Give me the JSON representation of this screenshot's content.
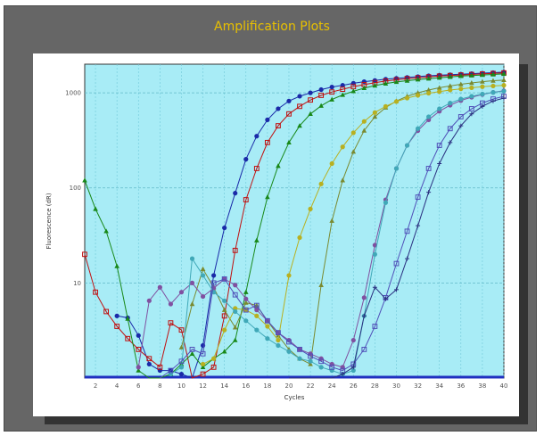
{
  "window": {
    "title": "Amplification Plots",
    "background": "#666666",
    "title_color": "#e8c000"
  },
  "chart_data": {
    "type": "line",
    "title": "Amplification Plots",
    "xlabel": "Cycles",
    "ylabel": "Fluorescence (dR)",
    "xlim": [
      1,
      40
    ],
    "ylim_log": [
      1,
      2000
    ],
    "yscale": "log",
    "grid": true,
    "plot_background": "#a8ecf6",
    "x_ticks": [
      "2",
      "4",
      "6",
      "8",
      "10",
      "12",
      "14",
      "16",
      "18",
      "20",
      "22",
      "24",
      "26",
      "28",
      "30",
      "32",
      "34",
      "36",
      "38",
      "40"
    ],
    "y_ticks": [
      {
        "value": 10,
        "label": "10"
      },
      {
        "value": 100,
        "label": "100"
      },
      {
        "value": 1000,
        "label": "1000"
      }
    ],
    "baseline_color": "#2030c0",
    "series": [
      {
        "color": "#1a2aa8",
        "marker": "circle",
        "x": [
          4,
          5,
          6,
          7,
          8,
          9,
          10,
          11,
          12,
          13,
          14,
          15,
          16,
          17,
          18,
          19,
          20,
          21,
          22,
          23,
          24,
          25,
          26,
          27,
          28,
          29,
          30,
          31,
          32,
          33,
          34,
          35,
          36,
          37,
          38,
          39,
          40
        ],
        "y": [
          4.5,
          4.3,
          2.8,
          1.4,
          1.2,
          1.2,
          1.1,
          1.0,
          2.2,
          12,
          38,
          88,
          200,
          350,
          520,
          680,
          820,
          920,
          1000,
          1080,
          1150,
          1200,
          1260,
          1310,
          1350,
          1390,
          1420,
          1450,
          1480,
          1510,
          1530,
          1550,
          1570,
          1590,
          1610,
          1630,
          1650
        ]
      },
      {
        "color": "#c01010",
        "marker": "square",
        "x": [
          1,
          2,
          3,
          4,
          5,
          6,
          7,
          8,
          9,
          10,
          11,
          12,
          13,
          14,
          15,
          16,
          17,
          18,
          19,
          20,
          21,
          22,
          23,
          24,
          25,
          26,
          27,
          28,
          29,
          30,
          31,
          32,
          33,
          34,
          35,
          36,
          37,
          38,
          39,
          40
        ],
        "y": [
          20,
          8,
          5,
          3.5,
          2.6,
          2.0,
          1.6,
          1.3,
          3.8,
          3.2,
          1.0,
          1.1,
          1.3,
          4.5,
          22,
          75,
          160,
          300,
          450,
          600,
          720,
          840,
          940,
          1020,
          1090,
          1160,
          1220,
          1280,
          1330,
          1370,
          1410,
          1440,
          1470,
          1500,
          1520,
          1540,
          1560,
          1580,
          1600,
          1620
        ]
      },
      {
        "color": "#188818",
        "marker": "triangle",
        "x": [
          1,
          2,
          3,
          4,
          5,
          6,
          7,
          8,
          9,
          10,
          11,
          12,
          13,
          14,
          15,
          16,
          17,
          18,
          19,
          20,
          21,
          22,
          23,
          24,
          25,
          26,
          27,
          28,
          29,
          30,
          31,
          32,
          33,
          34,
          35,
          36,
          37,
          38,
          39,
          40
        ],
        "y": [
          120,
          60,
          35,
          15,
          4.2,
          1.2,
          1.0,
          1.0,
          1.1,
          1.4,
          1.8,
          1.3,
          1.6,
          1.9,
          2.5,
          8,
          28,
          80,
          170,
          300,
          450,
          600,
          730,
          850,
          950,
          1040,
          1120,
          1190,
          1250,
          1300,
          1340,
          1380,
          1410,
          1440,
          1470,
          1500,
          1520,
          1540,
          1560,
          1580
        ]
      },
      {
        "color": "#7a8a30",
        "marker": "triangle",
        "x": [
          10,
          11,
          12,
          13,
          14,
          15,
          16,
          17,
          18,
          19,
          20,
          21,
          22,
          23,
          24,
          25,
          26,
          27,
          28,
          29,
          30,
          31,
          32,
          33,
          34,
          35,
          36,
          37,
          38,
          39,
          40
        ],
        "y": [
          2.1,
          6.0,
          14,
          9.0,
          5.2,
          3.4,
          6.2,
          5.8,
          4.0,
          2.8,
          2.0,
          1.6,
          1.4,
          9.5,
          45,
          120,
          240,
          400,
          560,
          700,
          820,
          920,
          1000,
          1070,
          1130,
          1180,
          1230,
          1270,
          1310,
          1340,
          1360
        ]
      },
      {
        "color": "#b8b020",
        "marker": "circle",
        "x": [
          12,
          13,
          14,
          15,
          16,
          17,
          18,
          19,
          20,
          21,
          22,
          23,
          24,
          25,
          26,
          27,
          28,
          29,
          30,
          31,
          32,
          33,
          34,
          35,
          36,
          37,
          38,
          39,
          40
        ],
        "y": [
          1.4,
          1.6,
          3.2,
          5.4,
          5.2,
          4.5,
          3.5,
          2.5,
          12,
          30,
          60,
          110,
          180,
          270,
          380,
          500,
          620,
          720,
          810,
          880,
          940,
          990,
          1030,
          1070,
          1100,
          1130,
          1160,
          1180,
          1200
        ]
      },
      {
        "color": "#8050a0",
        "marker": "circle",
        "x": [
          6,
          7,
          8,
          9,
          10,
          11,
          12,
          13,
          14,
          15,
          16,
          17,
          18,
          19,
          20,
          21,
          22,
          23,
          24,
          25,
          26,
          27,
          28,
          29,
          30,
          31,
          32,
          33,
          34,
          35,
          36,
          37,
          38,
          39,
          40
        ],
        "y": [
          1.3,
          6.5,
          9.0,
          6.0,
          8.0,
          10,
          7.2,
          8.8,
          11,
          9.5,
          6.8,
          5.2,
          4.0,
          3.0,
          2.5,
          2.0,
          1.8,
          1.6,
          1.4,
          1.3,
          2.5,
          7,
          25,
          75,
          160,
          280,
          400,
          520,
          640,
          740,
          830,
          900,
          960,
          1010,
          1050
        ]
      },
      {
        "color": "#40a8b8",
        "marker": "circle",
        "x": [
          9,
          10,
          11,
          12,
          13,
          14,
          15,
          16,
          17,
          18,
          19,
          20,
          21,
          22,
          23,
          24,
          25,
          26,
          27,
          28,
          29,
          30,
          31,
          32,
          33,
          34,
          35,
          36,
          37,
          38,
          39,
          40
        ],
        "y": [
          1.1,
          1.3,
          18,
          12,
          8.0,
          6.5,
          5.0,
          4.0,
          3.2,
          2.6,
          2.2,
          1.9,
          1.6,
          1.5,
          1.3,
          1.2,
          1.1,
          1.2,
          4.5,
          20,
          70,
          160,
          280,
          420,
          560,
          680,
          780,
          860,
          920,
          970,
          1010,
          1040
        ]
      },
      {
        "color": "#5050b8",
        "marker": "square",
        "x": [
          8,
          9,
          10,
          11,
          12,
          13,
          14,
          15,
          16,
          17,
          18,
          19,
          20,
          21,
          22,
          23,
          24,
          25,
          26,
          27,
          28,
          29,
          30,
          31,
          32,
          33,
          34,
          35,
          36,
          37,
          38,
          39,
          40
        ],
        "y": [
          1.0,
          1.2,
          1.5,
          2.0,
          1.8,
          10,
          11,
          7.5,
          5.2,
          5.8,
          4.0,
          3.0,
          2.4,
          2.0,
          1.7,
          1.5,
          1.3,
          1.2,
          1.4,
          2.0,
          3.5,
          7,
          16,
          35,
          80,
          160,
          280,
          420,
          560,
          680,
          780,
          860,
          920
        ]
      },
      {
        "color": "#2a3080",
        "marker": "plus",
        "x": [
          20,
          21,
          22,
          23,
          24,
          25,
          26,
          27,
          28,
          29,
          30,
          31,
          32,
          33,
          34,
          35,
          36,
          37,
          38,
          39,
          40
        ],
        "y": [
          1.0,
          1.0,
          1.0,
          1.0,
          1.0,
          1.1,
          1.3,
          4.5,
          9.0,
          6.8,
          8.5,
          18,
          40,
          90,
          180,
          300,
          450,
          600,
          720,
          820,
          880
        ]
      }
    ]
  }
}
